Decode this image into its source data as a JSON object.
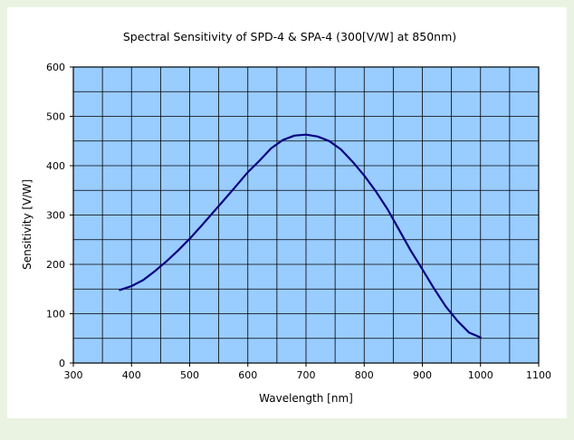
{
  "chart_data": {
    "type": "line",
    "title": "Spectral Sensitivity of SPD-4 & SPA-4 (300[V/W] at 850nm)",
    "xlabel": "Wavelength [nm]",
    "ylabel": "Sensitivity [V/W]",
    "xlim": [
      300,
      1100
    ],
    "ylim": [
      0,
      600
    ],
    "x_ticks": [
      "300",
      "400",
      "500",
      "600",
      "700",
      "800",
      "900",
      "1000",
      "1100"
    ],
    "y_ticks": [
      "0",
      "100",
      "200",
      "300",
      "400",
      "500",
      "600"
    ],
    "grid": true,
    "plot_background": "#99ccff",
    "grid_color": "#000000",
    "line_color": "#000080",
    "series": [
      {
        "x": [
          380,
          400,
          420,
          440,
          460,
          480,
          500,
          520,
          540,
          560,
          580,
          600,
          620,
          640,
          660,
          680,
          700,
          720,
          740,
          760,
          780,
          800,
          820,
          840,
          860,
          880,
          900,
          920,
          940,
          960,
          980,
          1000
        ],
        "values": [
          148,
          156,
          168,
          186,
          206,
          228,
          252,
          278,
          305,
          332,
          359,
          387,
          410,
          435,
          452,
          461,
          463,
          459,
          450,
          433,
          408,
          380,
          348,
          312,
          270,
          228,
          190,
          151,
          115,
          86,
          62,
          52
        ]
      }
    ]
  }
}
